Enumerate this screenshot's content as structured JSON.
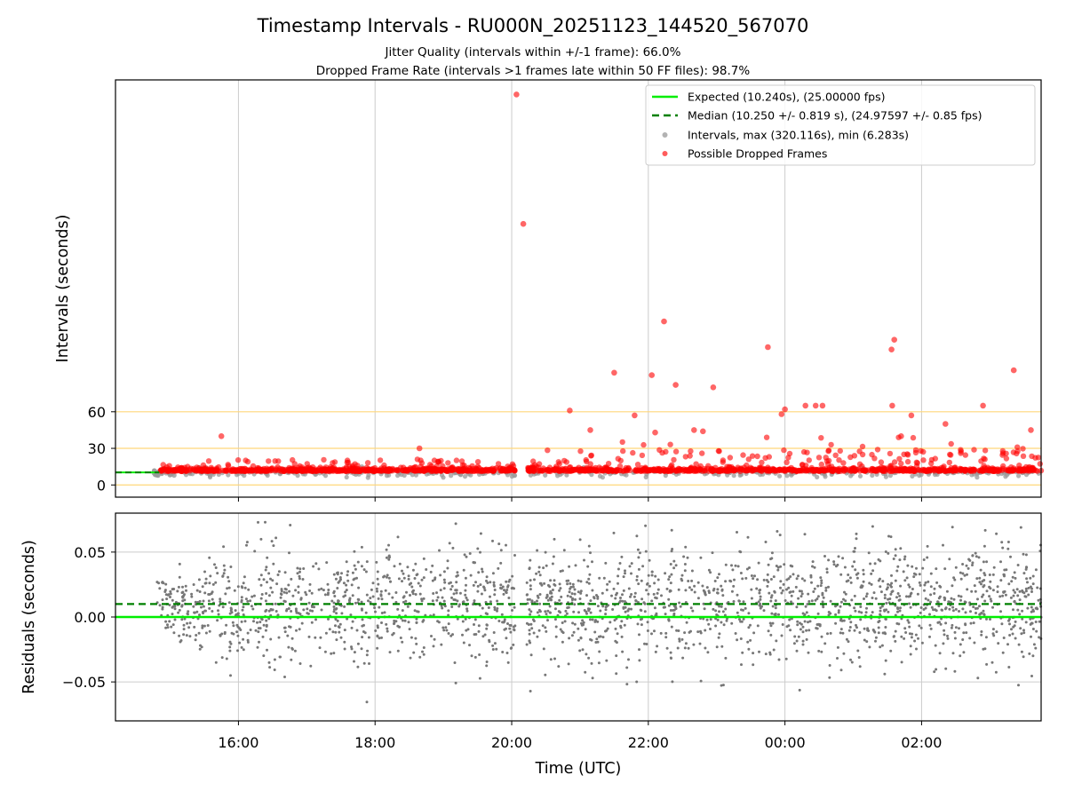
{
  "chart_data": {
    "type": "scatter",
    "title": "Timestamp Intervals - RU000N_20251123_144520_567070",
    "subtitles": [
      "Jitter Quality (intervals within +/-1 frame): 66.0%",
      "Dropped Frame Rate (intervals >1 frames late within 50 FF files): 98.7%"
    ],
    "xlabel": "Time (UTC)",
    "x_ticks": [
      {
        "label": "16:00",
        "hours": 16
      },
      {
        "label": "18:00",
        "hours": 18
      },
      {
        "label": "20:00",
        "hours": 20
      },
      {
        "label": "22:00",
        "hours": 22
      },
      {
        "label": "00:00",
        "hours": 24
      },
      {
        "label": "02:00",
        "hours": 26
      }
    ],
    "xlim_hours": [
      14.2,
      27.75
    ],
    "data_start_hours": 14.76,
    "gap_hours": [
      20.05,
      20.22
    ],
    "top": {
      "ylabel": "Intervals (seconds)",
      "ylim": [
        -10,
        332
      ],
      "y_ticks": [
        0,
        30,
        60
      ],
      "horizontal_lines": [
        0,
        30,
        60
      ],
      "expected_interval": 10.24,
      "median_interval": 10.25,
      "outliers": [
        {
          "t": 20.07,
          "y": 320.1
        },
        {
          "t": 20.17,
          "y": 214
        },
        {
          "t": 22.23,
          "y": 134
        },
        {
          "t": 21.5,
          "y": 92
        },
        {
          "t": 22.05,
          "y": 90
        },
        {
          "t": 22.4,
          "y": 82
        },
        {
          "t": 22.95,
          "y": 80
        },
        {
          "t": 23.75,
          "y": 113
        },
        {
          "t": 25.6,
          "y": 119
        },
        {
          "t": 25.56,
          "y": 111
        },
        {
          "t": 27.35,
          "y": 94
        },
        {
          "t": 24.3,
          "y": 65
        },
        {
          "t": 24.45,
          "y": 65
        },
        {
          "t": 24.55,
          "y": 65
        },
        {
          "t": 25.57,
          "y": 65
        },
        {
          "t": 26.9,
          "y": 65
        },
        {
          "t": 24.0,
          "y": 62
        },
        {
          "t": 23.95,
          "y": 58
        },
        {
          "t": 21.8,
          "y": 57
        },
        {
          "t": 25.85,
          "y": 57
        },
        {
          "t": 20.85,
          "y": 61
        },
        {
          "t": 15.75,
          "y": 40
        },
        {
          "t": 18.65,
          "y": 30
        },
        {
          "t": 21.15,
          "y": 45
        },
        {
          "t": 22.1,
          "y": 43
        },
        {
          "t": 22.67,
          "y": 45
        },
        {
          "t": 22.8,
          "y": 44
        },
        {
          "t": 25.7,
          "y": 40
        },
        {
          "t": 26.35,
          "y": 50
        },
        {
          "t": 27.6,
          "y": 45
        }
      ]
    },
    "bottom": {
      "ylabel": "Residuals (seconds)",
      "ylim": [
        -0.08,
        0.08
      ],
      "y_ticks": [
        -0.05,
        0.0,
        0.05
      ],
      "y_tick_labels": [
        "−0.05",
        "0.00",
        "0.05"
      ],
      "expected_residual": 0.0,
      "median_residual": 0.01
    },
    "legend": {
      "position": "top-right",
      "entries": [
        {
          "label": "Expected (10.240s), (25.00000 fps)",
          "style": "solid-line",
          "color": "#00ee00"
        },
        {
          "label": "Median (10.250 +/- 0.819 s), (24.97597 +/- 0.85 fps)",
          "style": "dashed-line",
          "color": "#008000"
        },
        {
          "label": "Intervals, max (320.116s), min (6.283s)",
          "style": "marker",
          "color": "#999999"
        },
        {
          "label": "Possible Dropped Frames",
          "style": "marker",
          "color": "#ff3333"
        }
      ]
    },
    "colors": {
      "expected": "#00ee00",
      "median": "#008000",
      "intervals": "#999999",
      "dropped": "#ff0000",
      "residual_points": "#777777",
      "reference_lines": "#ffd77a",
      "grid": "#cccccc"
    }
  }
}
